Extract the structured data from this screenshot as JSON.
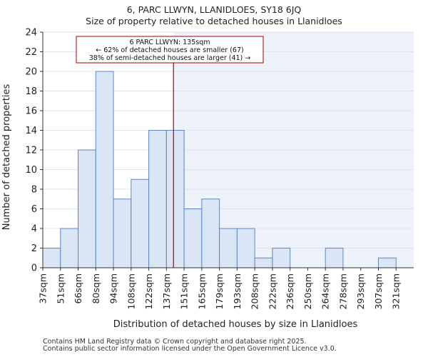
{
  "chart_data": {
    "type": "bar",
    "title": "6, PARC LLWYN, LLANIDLOES, SY18 6JQ",
    "subtitle": "Size of property relative to detached houses in Llanidloes",
    "xlabel": "Distribution of detached houses by size in Llanidloes",
    "ylabel": "Number of detached properties",
    "categories": [
      "37sqm",
      "51sqm",
      "66sqm",
      "80sqm",
      "94sqm",
      "108sqm",
      "122sqm",
      "137sqm",
      "151sqm",
      "165sqm",
      "179sqm",
      "193sqm",
      "208sqm",
      "222sqm",
      "236sqm",
      "250sqm",
      "264sqm",
      "278sqm",
      "293sqm",
      "307sqm",
      "321sqm"
    ],
    "values": [
      2,
      4,
      12,
      20,
      7,
      9,
      14,
      14,
      6,
      7,
      4,
      4,
      1,
      2,
      0,
      0,
      2,
      0,
      0,
      1,
      0
    ],
    "ylim": [
      0,
      24
    ],
    "yticks": [
      0,
      2,
      4,
      6,
      8,
      10,
      12,
      14,
      16,
      18,
      20,
      22,
      24
    ],
    "grid": true,
    "marker": {
      "value_bin_index": 6.9,
      "label_line1": "6 PARC LLWYN: 135sqm",
      "label_line2": "← 62% of detached houses are smaller (67)",
      "label_line3": "38% of semi-detached houses are larger (41) →",
      "color": "#aa0000"
    },
    "colors": {
      "bar_fill": "#dae5f5",
      "bar_stroke": "#5b87c8",
      "highlight_bg": "#eef3fb",
      "grid": "#dce4ef"
    }
  },
  "footer": {
    "line1": "Contains HM Land Registry data © Crown copyright and database right 2025.",
    "line2": "Contains public sector information licensed under the Open Government Licence v3.0."
  }
}
